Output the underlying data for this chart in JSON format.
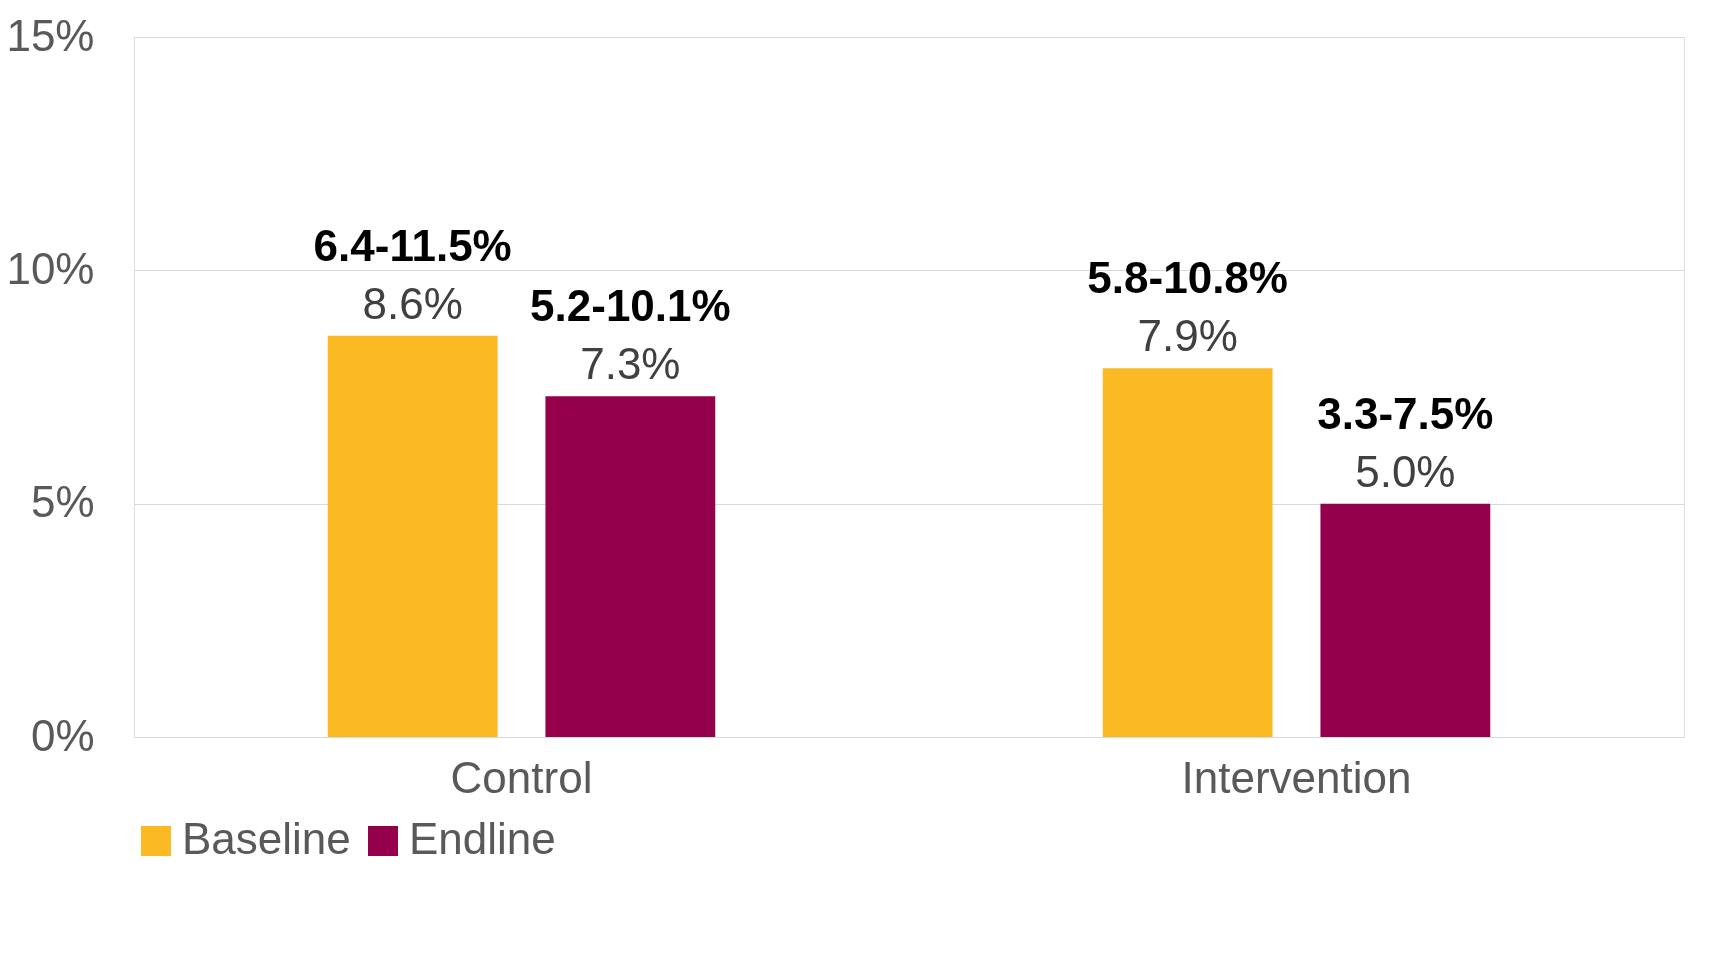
{
  "chart_data": {
    "type": "bar",
    "categories": [
      "Control",
      "Intervention"
    ],
    "series": [
      {
        "name": "Baseline",
        "color": "#fbb923",
        "values": [
          8.6,
          7.9
        ],
        "value_labels": [
          "8.6%",
          "7.9%"
        ]
      },
      {
        "name": "Endline",
        "color": "#94004c",
        "values": [
          7.3,
          5.0
        ],
        "value_labels": [
          "7.3%",
          "5.0%"
        ]
      }
    ],
    "annotations": [
      "6.4-11.5%",
      "5.8-10.8%",
      "5.2-10.1%",
      "3.3-7.5%"
    ],
    "ylim": [
      0,
      15
    ],
    "yticks": [
      {
        "value": 0,
        "label": "0%"
      },
      {
        "value": 5,
        "label": "5%"
      },
      {
        "value": 10,
        "label": "10%"
      },
      {
        "value": 15,
        "label": "15%"
      }
    ],
    "grid": "y",
    "legend": "bottom"
  }
}
